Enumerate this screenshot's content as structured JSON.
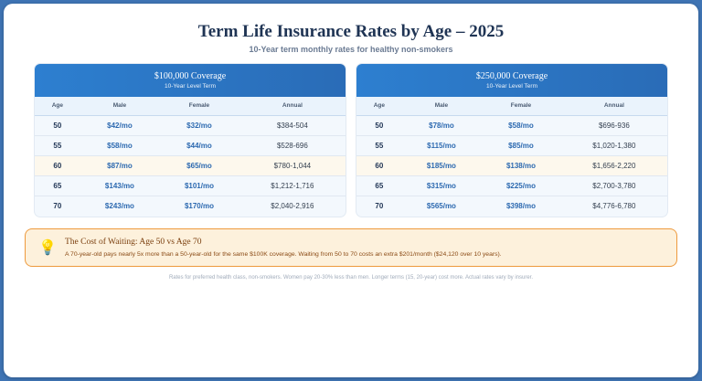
{
  "header": {
    "title": "Term Life Insurance Rates by Age – 2025",
    "subtitle": "10-Year term monthly rates for healthy non-smokers"
  },
  "tables": [
    {
      "title": "$100,000 Coverage",
      "subtitle": "10-Year Level Term",
      "columns": [
        "Age",
        "Male",
        "Female",
        "Annual"
      ],
      "rows": [
        {
          "age": "50",
          "male": "$42/mo",
          "female": "$32/mo",
          "annual": "$384-504",
          "highlight": false
        },
        {
          "age": "55",
          "male": "$58/mo",
          "female": "$44/mo",
          "annual": "$528-696",
          "highlight": false
        },
        {
          "age": "60",
          "male": "$87/mo",
          "female": "$65/mo",
          "annual": "$780-1,044",
          "highlight": true
        },
        {
          "age": "65",
          "male": "$143/mo",
          "female": "$101/mo",
          "annual": "$1,212-1,716",
          "highlight": false
        },
        {
          "age": "70",
          "male": "$243/mo",
          "female": "$170/mo",
          "annual": "$2,040-2,916",
          "highlight": false
        }
      ]
    },
    {
      "title": "$250,000 Coverage",
      "subtitle": "10-Year Level Term",
      "columns": [
        "Age",
        "Male",
        "Female",
        "Annual"
      ],
      "rows": [
        {
          "age": "50",
          "male": "$78/mo",
          "female": "$58/mo",
          "annual": "$696-936",
          "highlight": false
        },
        {
          "age": "55",
          "male": "$115/mo",
          "female": "$85/mo",
          "annual": "$1,020-1,380",
          "highlight": false
        },
        {
          "age": "60",
          "male": "$185/mo",
          "female": "$138/mo",
          "annual": "$1,656-2,220",
          "highlight": true
        },
        {
          "age": "65",
          "male": "$315/mo",
          "female": "$225/mo",
          "annual": "$2,700-3,780",
          "highlight": false
        },
        {
          "age": "70",
          "male": "$565/mo",
          "female": "$398/mo",
          "annual": "$4,776-6,780",
          "highlight": false
        }
      ]
    }
  ],
  "callout": {
    "icon": "lightbulb-icon",
    "title": "The Cost of Waiting: Age 50 vs Age 70",
    "text": "A 70-year-old pays nearly 5x more than a 50-year-old for the same $100K coverage. Waiting from 50 to 70 costs an extra $201/month ($24,120 over 10 years)."
  },
  "footnote": "Rates for preferred health class, non-smokers. Women pay 20-30% less than men. Longer terms (15, 20-year) cost more. Actual rates vary by insurer.",
  "colors": {
    "accent": "#2c69b0",
    "header_gradient_start": "#2d7fd0",
    "header_gradient_end": "#2a6cb7",
    "callout_border": "#ee9a3d",
    "callout_bg": "#fdf1dc"
  }
}
